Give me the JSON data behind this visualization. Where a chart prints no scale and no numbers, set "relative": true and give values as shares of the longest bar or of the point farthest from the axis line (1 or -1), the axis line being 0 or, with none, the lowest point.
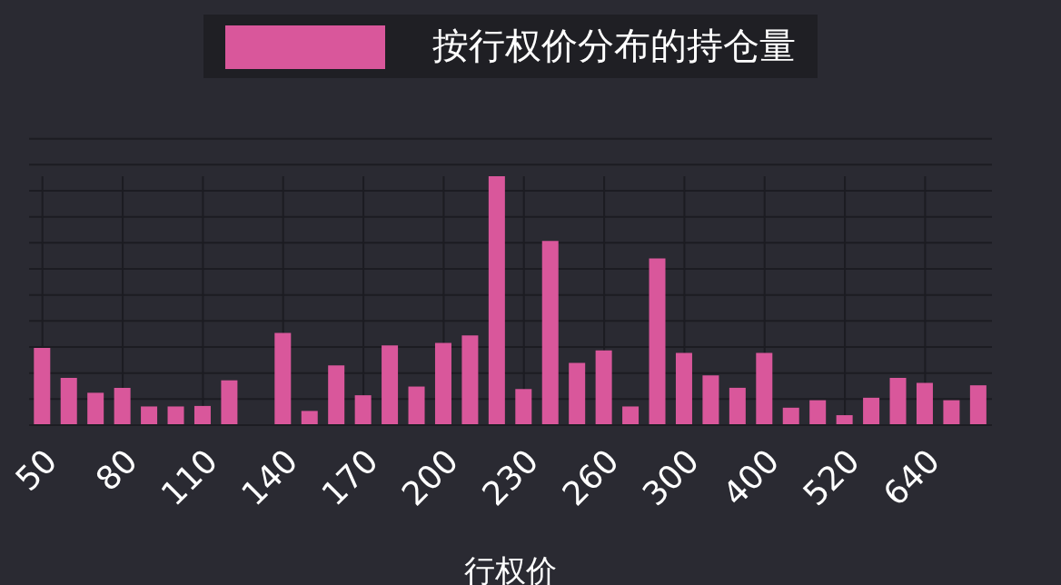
{
  "chart_data": {
    "type": "bar",
    "xlabel": "行权价",
    "relative": true,
    "grid": true,
    "legend": "top",
    "categories": [
      "50",
      null,
      null,
      "80",
      null,
      null,
      "110",
      null,
      null,
      "140",
      null,
      null,
      "170",
      null,
      null,
      "200",
      null,
      null,
      "230",
      null,
      null,
      "260",
      null,
      null,
      "300",
      null,
      null,
      "400",
      null,
      null,
      "520",
      null,
      null,
      "640",
      null,
      null
    ],
    "series": [
      {
        "name": "按行权价分布的持仓量",
        "color": "#d9579b",
        "values": [
          0.31,
          0.19,
          0.13,
          0.15,
          0.075,
          0.075,
          0.077,
          0.18,
          0,
          0.37,
          0.057,
          0.24,
          0.12,
          0.32,
          0.155,
          0.33,
          0.36,
          1,
          0.145,
          0.74,
          0.25,
          0.3,
          0.075,
          0.67,
          0.29,
          0.2,
          0.15,
          0.29,
          0.07,
          0.1,
          0.04,
          0.11,
          0.19,
          0.17,
          0.1,
          0.16
        ]
      }
    ]
  }
}
